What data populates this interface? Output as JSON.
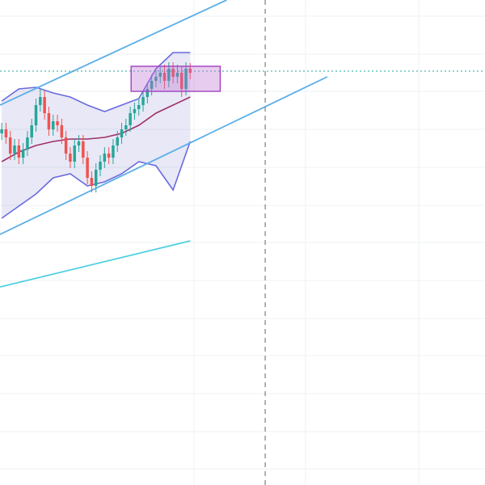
{
  "chart_data": {
    "type": "candlestick",
    "xlim": [
      -0.4,
      112.8
    ],
    "ylim": [
      0,
      600
    ],
    "up_color": "#26a69a",
    "down_color": "#ef5350",
    "open": [
      435,
      440,
      430,
      410,
      420,
      405,
      415,
      430,
      445,
      470,
      480,
      460,
      440,
      450,
      445,
      430,
      410,
      400,
      420,
      425,
      405,
      380,
      370,
      390,
      400,
      410,
      405,
      420,
      430,
      440,
      445,
      460,
      465,
      470,
      480,
      490,
      500,
      505,
      510,
      500,
      515,
      505,
      510,
      490,
      515
    ],
    "high": [
      448,
      448,
      438,
      428,
      428,
      423,
      438,
      453,
      478,
      490,
      488,
      468,
      458,
      458,
      453,
      438,
      418,
      428,
      433,
      433,
      413,
      388,
      398,
      408,
      418,
      418,
      428,
      438,
      448,
      453,
      468,
      473,
      478,
      488,
      498,
      508,
      513,
      518,
      520,
      523,
      523,
      520,
      518,
      523,
      522
    ],
    "low": [
      427,
      422,
      402,
      402,
      397,
      397,
      407,
      422,
      437,
      462,
      452,
      432,
      432,
      437,
      422,
      402,
      392,
      392,
      412,
      397,
      372,
      362,
      362,
      382,
      392,
      397,
      397,
      412,
      422,
      432,
      437,
      452,
      457,
      462,
      472,
      482,
      492,
      497,
      490,
      492,
      497,
      497,
      480,
      482,
      502
    ],
    "close": [
      440,
      430,
      410,
      420,
      405,
      415,
      430,
      445,
      470,
      480,
      460,
      440,
      450,
      445,
      430,
      410,
      400,
      420,
      425,
      405,
      380,
      370,
      390,
      400,
      410,
      405,
      420,
      430,
      440,
      445,
      460,
      465,
      470,
      480,
      490,
      500,
      505,
      510,
      500,
      515,
      505,
      510,
      490,
      515,
      510
    ],
    "bands": {
      "x": [
        0,
        4,
        8,
        12,
        16,
        20,
        24,
        28,
        32,
        36,
        40,
        44
      ],
      "fill": "rgba(110,110,200,0.16)",
      "band_color": "#6a6ae0",
      "middle_color": "#a0306a",
      "upper": [
        475,
        490,
        492,
        485,
        480,
        470,
        462,
        470,
        478,
        515,
        535,
        535
      ],
      "middle": [
        400,
        412,
        420,
        425,
        428,
        428,
        430,
        435,
        445,
        460,
        470,
        480
      ],
      "lower": [
        330,
        345,
        360,
        380,
        385,
        370,
        375,
        385,
        400,
        395,
        365,
        425
      ]
    },
    "lines": [
      {
        "color": "#5aaee8",
        "x": [
          -0.4,
          52.5
        ],
        "values": [
          470,
          600
        ]
      },
      {
        "color": "#5aaee8",
        "x": [
          -0.4,
          76
        ],
        "values": [
          310,
          505
        ]
      },
      {
        "color": "#4dd0e1",
        "x": [
          -0.4,
          44
        ],
        "values": [
          245,
          302
        ]
      }
    ],
    "box": {
      "x": [
        30.2,
        51
      ],
      "values": [
        487,
        518
      ],
      "fill": "rgba(190,110,210,0.35)",
      "stroke": "#a040c0"
    },
    "vline": {
      "x": 61.5,
      "color": "#888888"
    },
    "hline": {
      "value": 512,
      "color": "#26a69a"
    }
  }
}
